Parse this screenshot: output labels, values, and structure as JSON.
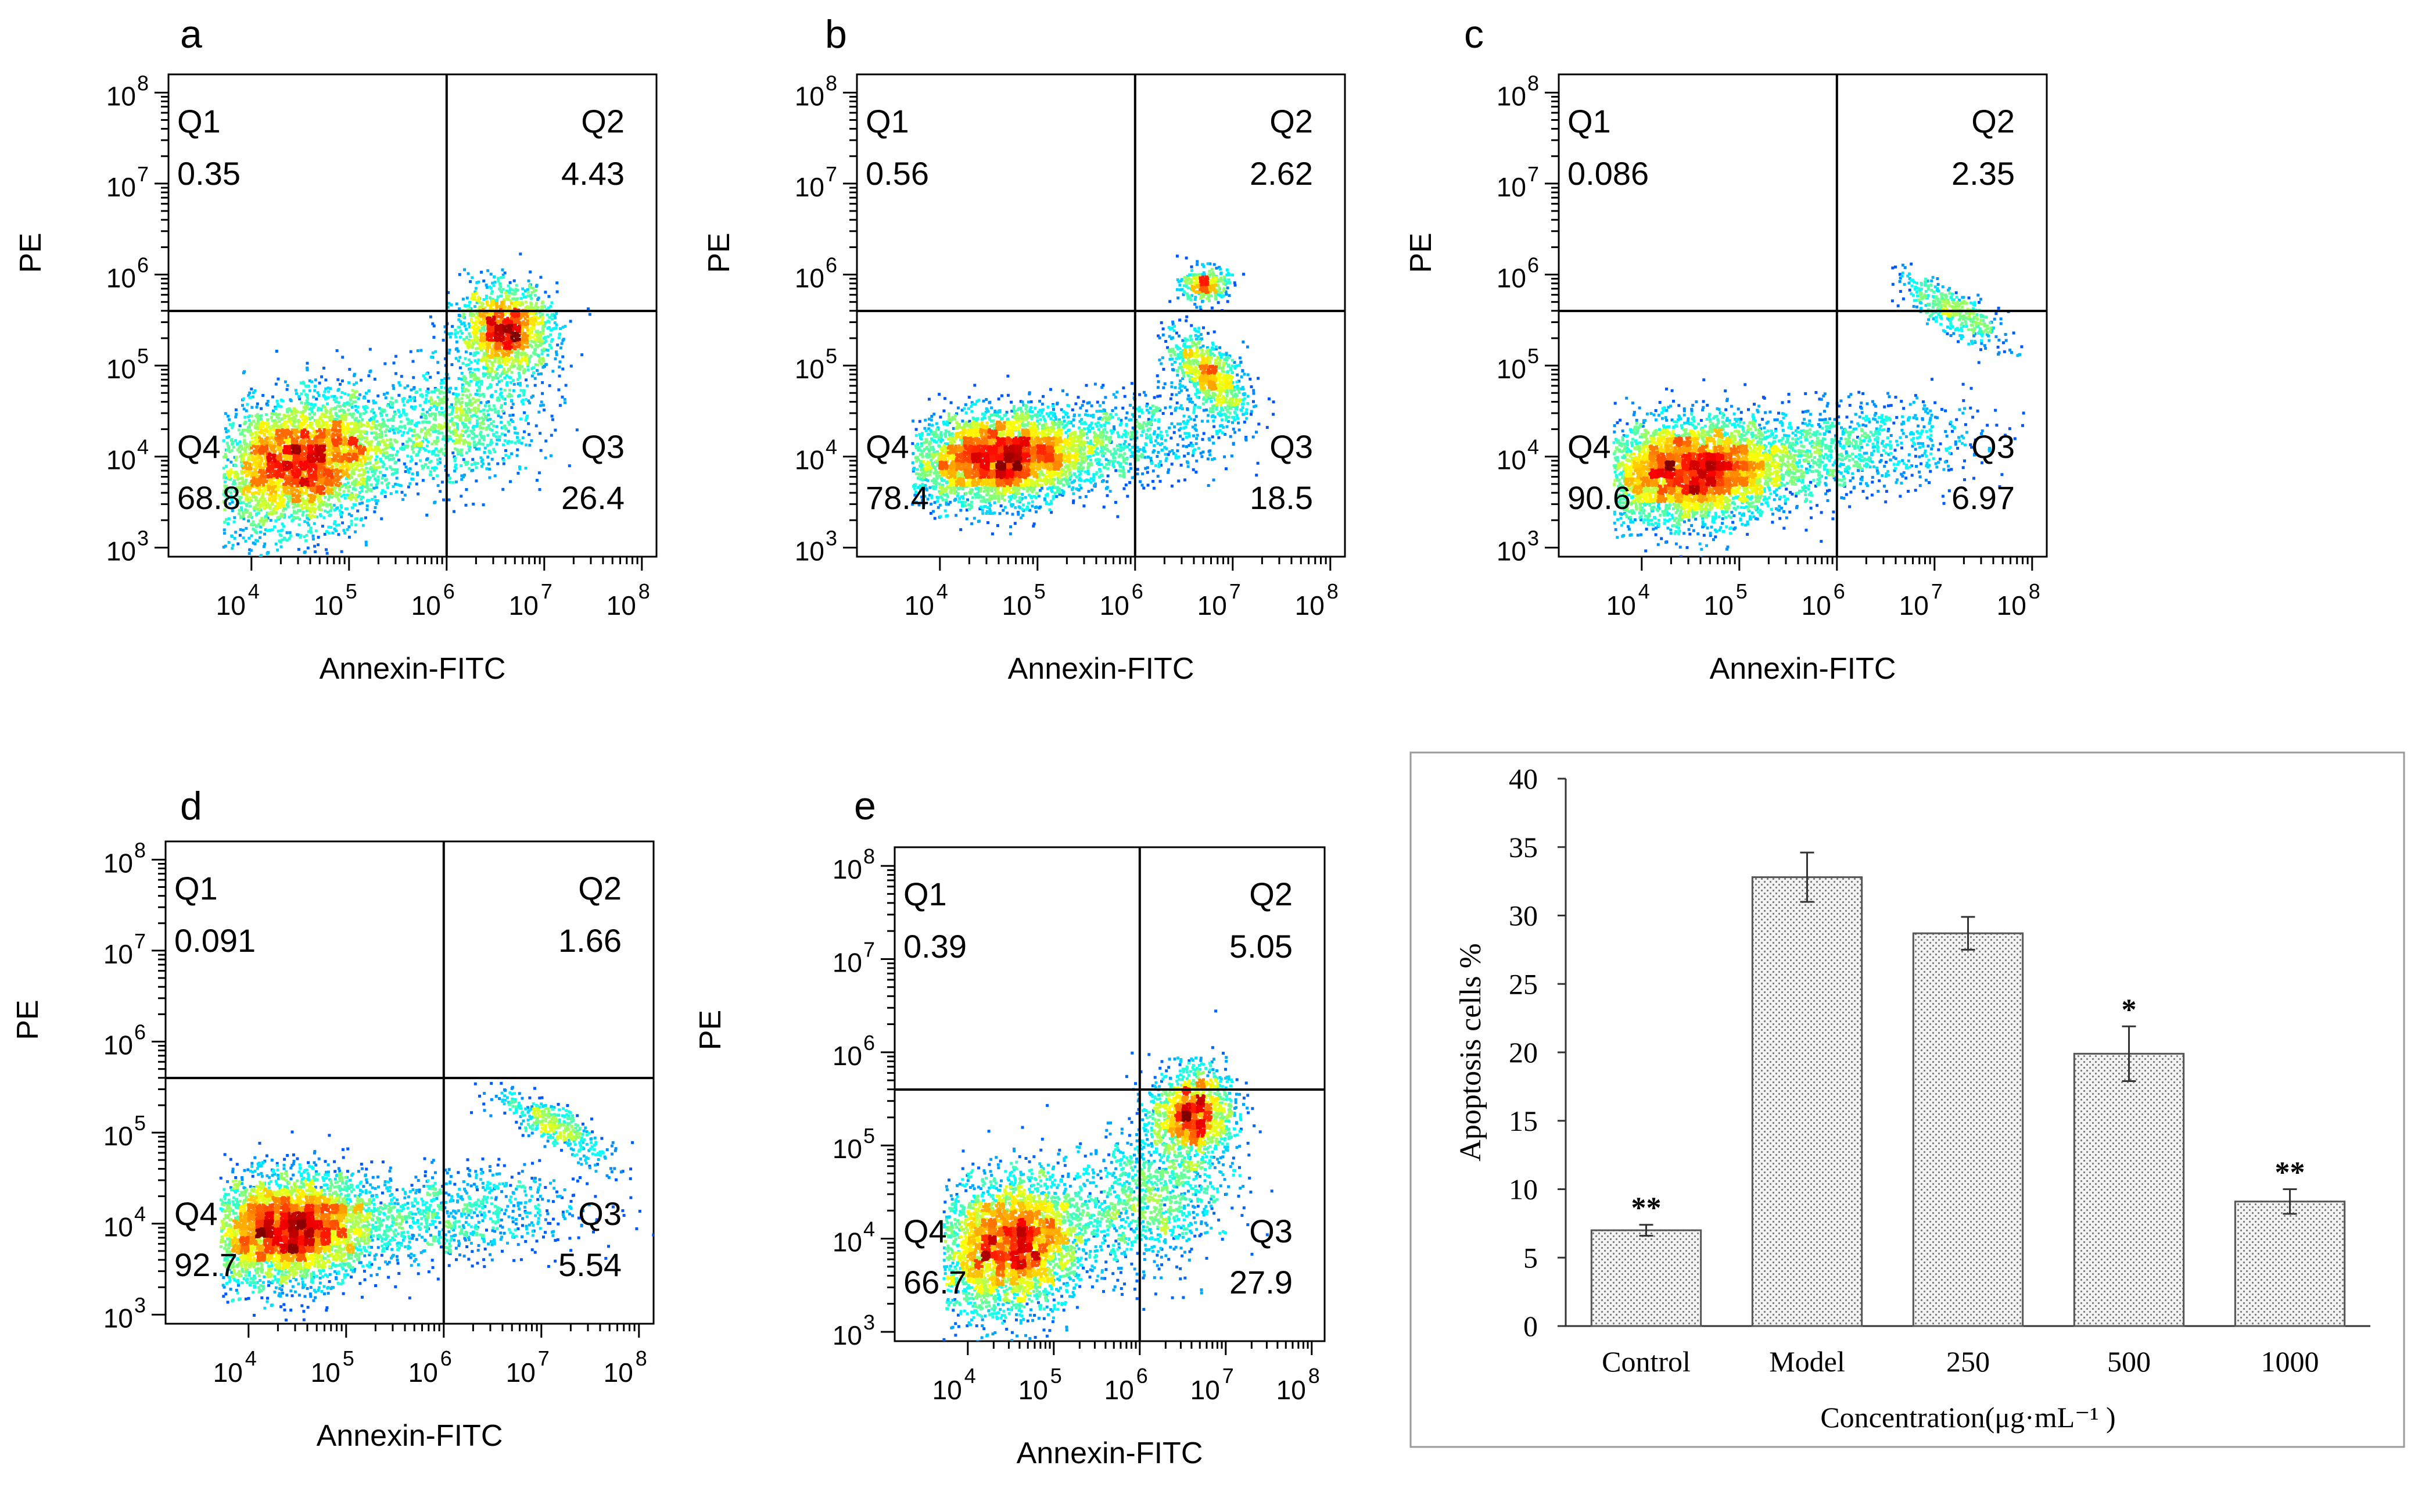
{
  "flow_panels": [
    {
      "id": "a",
      "label": "a",
      "x_axis_label": "Annexin-FITC",
      "y_axis_label": "PE",
      "quadrants": [
        {
          "name": "Q1",
          "value": "0.35"
        },
        {
          "name": "Q2",
          "value": "4.43"
        },
        {
          "name": "Q3",
          "value": "26.4"
        },
        {
          "name": "Q4",
          "value": "68.8"
        }
      ],
      "x_gate_log10": 6.0,
      "y_gate_log10": 5.6,
      "populations": [
        {
          "x": 4.5,
          "y": 3.95,
          "sx": 0.55,
          "sy": 0.38,
          "n": 3800,
          "rot": 0.55
        },
        {
          "x": 6.6,
          "y": 5.4,
          "sx": 0.25,
          "sy": 0.25,
          "n": 1400,
          "rot": 0.3
        },
        {
          "x": 6.1,
          "y": 4.4,
          "sx": 0.45,
          "sy": 0.35,
          "n": 900,
          "rot": 0.4
        }
      ]
    },
    {
      "id": "b",
      "label": "b",
      "x_axis_label": "Annexin-FITC",
      "y_axis_label": "PE",
      "quadrants": [
        {
          "name": "Q1",
          "value": "0.56"
        },
        {
          "name": "Q2",
          "value": "2.62"
        },
        {
          "name": "Q3",
          "value": "18.5"
        },
        {
          "name": "Q4",
          "value": "78.4"
        }
      ],
      "x_gate_log10": 6.0,
      "y_gate_log10": 5.6,
      "populations": [
        {
          "x": 4.6,
          "y": 4.0,
          "sx": 0.45,
          "sy": 0.25,
          "n": 3800,
          "rot": 0.15
        },
        {
          "x": 6.75,
          "y": 4.9,
          "sx": 0.18,
          "sy": 0.35,
          "n": 800,
          "rot": 0.9
        },
        {
          "x": 6.7,
          "y": 5.9,
          "sx": 0.12,
          "sy": 0.1,
          "n": 300,
          "rot": 0
        },
        {
          "x": 5.8,
          "y": 4.2,
          "sx": 0.6,
          "sy": 0.25,
          "n": 800,
          "rot": 0.2
        }
      ]
    },
    {
      "id": "c",
      "label": "c",
      "x_axis_label": "Annexin-FITC",
      "y_axis_label": "PE",
      "quadrants": [
        {
          "name": "Q1",
          "value": "0.086"
        },
        {
          "name": "Q2",
          "value": "2.35"
        },
        {
          "name": "Q3",
          "value": "6.97"
        },
        {
          "name": "Q4",
          "value": "90.6"
        }
      ],
      "x_gate_log10": 6.0,
      "y_gate_log10": 5.6,
      "populations": [
        {
          "x": 4.5,
          "y": 3.85,
          "sx": 0.5,
          "sy": 0.28,
          "n": 4200,
          "rot": 0.1
        },
        {
          "x": 6.0,
          "y": 4.1,
          "sx": 0.7,
          "sy": 0.25,
          "n": 1000,
          "rot": 0.15
        },
        {
          "x": 7.2,
          "y": 5.6,
          "sx": 0.15,
          "sy": 0.5,
          "n": 400,
          "rot": 1.2
        }
      ]
    },
    {
      "id": "d",
      "label": "d",
      "x_axis_label": "Annexin-FITC",
      "y_axis_label": "PE",
      "quadrants": [
        {
          "name": "Q1",
          "value": "0.091"
        },
        {
          "name": "Q2",
          "value": "1.66"
        },
        {
          "name": "Q3",
          "value": "5.54"
        },
        {
          "name": "Q4",
          "value": "92.7"
        }
      ],
      "x_gate_log10": 6.0,
      "y_gate_log10": 5.6,
      "populations": [
        {
          "x": 4.4,
          "y": 3.95,
          "sx": 0.45,
          "sy": 0.3,
          "n": 4200,
          "rot": 0.2
        },
        {
          "x": 6.0,
          "y": 4.1,
          "sx": 0.7,
          "sy": 0.25,
          "n": 900,
          "rot": 0.1
        },
        {
          "x": 7.1,
          "y": 5.1,
          "sx": 0.15,
          "sy": 0.55,
          "n": 400,
          "rot": 1.2
        }
      ]
    },
    {
      "id": "e",
      "label": "e",
      "x_axis_label": "Annexin-FITC",
      "y_axis_label": "PE",
      "quadrants": [
        {
          "name": "Q1",
          "value": "0.39"
        },
        {
          "name": "Q2",
          "value": "5.05"
        },
        {
          "name": "Q3",
          "value": "27.9"
        },
        {
          "name": "Q4",
          "value": "66.7"
        }
      ],
      "x_gate_log10": 6.0,
      "y_gate_log10": 5.6,
      "populations": [
        {
          "x": 4.5,
          "y": 3.95,
          "sx": 0.5,
          "sy": 0.38,
          "n": 3600,
          "rot": 0.55
        },
        {
          "x": 6.6,
          "y": 5.35,
          "sx": 0.25,
          "sy": 0.25,
          "n": 1400,
          "rot": 0.3
        },
        {
          "x": 6.1,
          "y": 4.45,
          "sx": 0.45,
          "sy": 0.4,
          "n": 1000,
          "rot": 0.5
        }
      ]
    }
  ],
  "flow_axis": {
    "x_ticks": [
      {
        "exp": 4,
        "base": "10",
        "sup": "4"
      },
      {
        "exp": 5,
        "base": "10",
        "sup": "5"
      },
      {
        "exp": 6,
        "base": "10",
        "sup": "6"
      },
      {
        "exp": 7,
        "base": "10",
        "sup": "7"
      },
      {
        "exp": 8,
        "base": "10",
        "sup": "8"
      }
    ],
    "y_ticks": [
      {
        "exp": 3,
        "base": "10",
        "sup": "3"
      },
      {
        "exp": 4,
        "base": "10",
        "sup": "4"
      },
      {
        "exp": 5,
        "base": "10",
        "sup": "5"
      },
      {
        "exp": 6,
        "base": "10",
        "sup": "6"
      },
      {
        "exp": 7,
        "base": "10",
        "sup": "7"
      },
      {
        "exp": 8,
        "base": "10",
        "sup": "8"
      }
    ],
    "x_range_log10": [
      3.15,
      8.15
    ],
    "y_range_log10": [
      2.9,
      8.2
    ]
  },
  "chart_data": {
    "type": "bar",
    "categories": [
      "Control",
      "Model",
      "250",
      "500",
      "1000"
    ],
    "values": [
      7.0,
      32.8,
      28.7,
      19.9,
      9.1
    ],
    "errors": [
      0.4,
      1.8,
      1.2,
      2.0,
      0.9
    ],
    "significance": [
      "**",
      "",
      "",
      "*",
      "**"
    ],
    "ylabel": "Apoptosis cells %",
    "xlabel": "Concentration(μg·mL⁻¹ )",
    "ylim": [
      0,
      40
    ],
    "yticks": [
      0,
      5,
      10,
      15,
      20,
      25,
      30,
      35,
      40
    ],
    "ytick_labels": [
      "0",
      "5",
      "10",
      "15",
      "20",
      "25",
      "30",
      "35",
      "40"
    ],
    "bar_pattern": "dotted-gray",
    "grid": false
  }
}
